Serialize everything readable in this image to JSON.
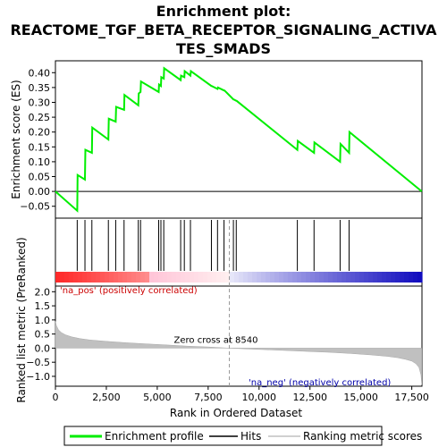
{
  "chart_data": {
    "type": "line",
    "title": "Enrichment plot: REACTOME_TGF_BETA_RECEPTOR_SIGNALING_ACTIVATES_SMADS",
    "title_lines": [
      "Enrichment plot:",
      "REACTOME_TGF_BETA_RECEPTOR_SIGNALING_ACTIVA",
      "TES_SMADS"
    ],
    "top_panel": {
      "ylabel": "Enrichment score (ES)",
      "ylim": [
        -0.09,
        0.44
      ],
      "yticks": [
        -0.05,
        0.0,
        0.05,
        0.1,
        0.15,
        0.2,
        0.25,
        0.3,
        0.35,
        0.4
      ],
      "ytick_labels": [
        "−0.05",
        "0.00",
        "0.05",
        "0.10",
        "0.15",
        "0.20",
        "0.25",
        "0.30",
        "0.35",
        "0.40"
      ],
      "series": [
        {
          "name": "Enrichment profile",
          "color": "#00ee00",
          "x": [
            0,
            1070,
            1090,
            1450,
            1470,
            1790,
            1810,
            2600,
            2620,
            2960,
            2980,
            3370,
            3390,
            4070,
            4090,
            4180,
            4200,
            5070,
            5090,
            5180,
            5200,
            5320,
            5340,
            6150,
            6170,
            6330,
            6350,
            6630,
            6650,
            7660,
            7680,
            7960,
            7980,
            8280,
            8300,
            8740,
            8760,
            8880,
            8900,
            11880,
            11900,
            12700,
            12720,
            13980,
            14000,
            14420,
            14440,
            17990
          ],
          "y": [
            0.0,
            -0.065,
            0.055,
            0.04,
            0.14,
            0.13,
            0.215,
            0.175,
            0.245,
            0.235,
            0.285,
            0.275,
            0.325,
            0.29,
            0.33,
            0.335,
            0.37,
            0.335,
            0.36,
            0.355,
            0.385,
            0.38,
            0.415,
            0.375,
            0.39,
            0.385,
            0.405,
            0.39,
            0.405,
            0.355,
            0.355,
            0.345,
            0.35,
            0.34,
            0.34,
            0.31,
            0.31,
            0.305,
            0.305,
            0.14,
            0.17,
            0.13,
            0.165,
            0.1,
            0.16,
            0.13,
            0.2,
            0.0
          ]
        }
      ]
    },
    "hits_panel": {
      "hits": [
        1070,
        1450,
        1790,
        2600,
        2960,
        3370,
        4070,
        4180,
        5070,
        5180,
        5320,
        6150,
        6330,
        6630,
        7660,
        7960,
        8280,
        8740,
        8880,
        11880,
        12700,
        13980,
        14420
      ]
    },
    "bottom_panel": {
      "ylabel": "Ranked list metric (PreRanked)",
      "xlabel": "Rank in Ordered Dataset",
      "ylim": [
        -1.35,
        2.2
      ],
      "yticks": [
        -1.0,
        -0.5,
        0.0,
        0.5,
        1.0,
        1.5,
        2.0
      ],
      "ytick_labels": [
        "−1.0",
        "−0.5",
        "0.0",
        "0.5",
        "1.0",
        "1.5",
        "2.0"
      ],
      "xlim": [
        0,
        18000
      ],
      "xticks": [
        0,
        2500,
        5000,
        7500,
        10000,
        12500,
        15000,
        17500
      ],
      "xtick_labels": [
        "0",
        "2,500",
        "5,000",
        "7,500",
        "10,000",
        "12,500",
        "15,000",
        "17,500"
      ],
      "metric_curve": {
        "x": [
          0,
          50,
          150,
          300,
          500,
          800,
          1200,
          1700,
          2500,
          3500,
          4500,
          5500,
          6500,
          7500,
          8540,
          9500,
          10500,
          11500,
          12500,
          13500,
          14500,
          15500,
          16300,
          16800,
          17200,
          17500,
          17700,
          17850,
          17950,
          17990
        ],
        "y": [
          0.95,
          0.8,
          0.65,
          0.55,
          0.47,
          0.4,
          0.34,
          0.29,
          0.24,
          0.19,
          0.15,
          0.11,
          0.07,
          0.04,
          0.0,
          -0.03,
          -0.06,
          -0.09,
          -0.12,
          -0.15,
          -0.19,
          -0.24,
          -0.29,
          -0.34,
          -0.4,
          -0.46,
          -0.55,
          -0.68,
          -0.95,
          -1.3
        ]
      },
      "zero_cross_label": "Zero cross at 8540",
      "zero_cross": 8540,
      "pos_label": "'na_pos' (positively correlated)",
      "neg_label": "'na_neg' (negatively correlated)",
      "pos_color": "#cc0000",
      "neg_color": "#0000aa"
    },
    "legend": {
      "placement": "bottom",
      "entries": [
        {
          "label": "Enrichment profile",
          "color": "#00ee00"
        },
        {
          "label": "Hits",
          "color": "#000000"
        },
        {
          "label": "Ranking metric scores",
          "color": "#c0c0c0"
        }
      ]
    }
  }
}
